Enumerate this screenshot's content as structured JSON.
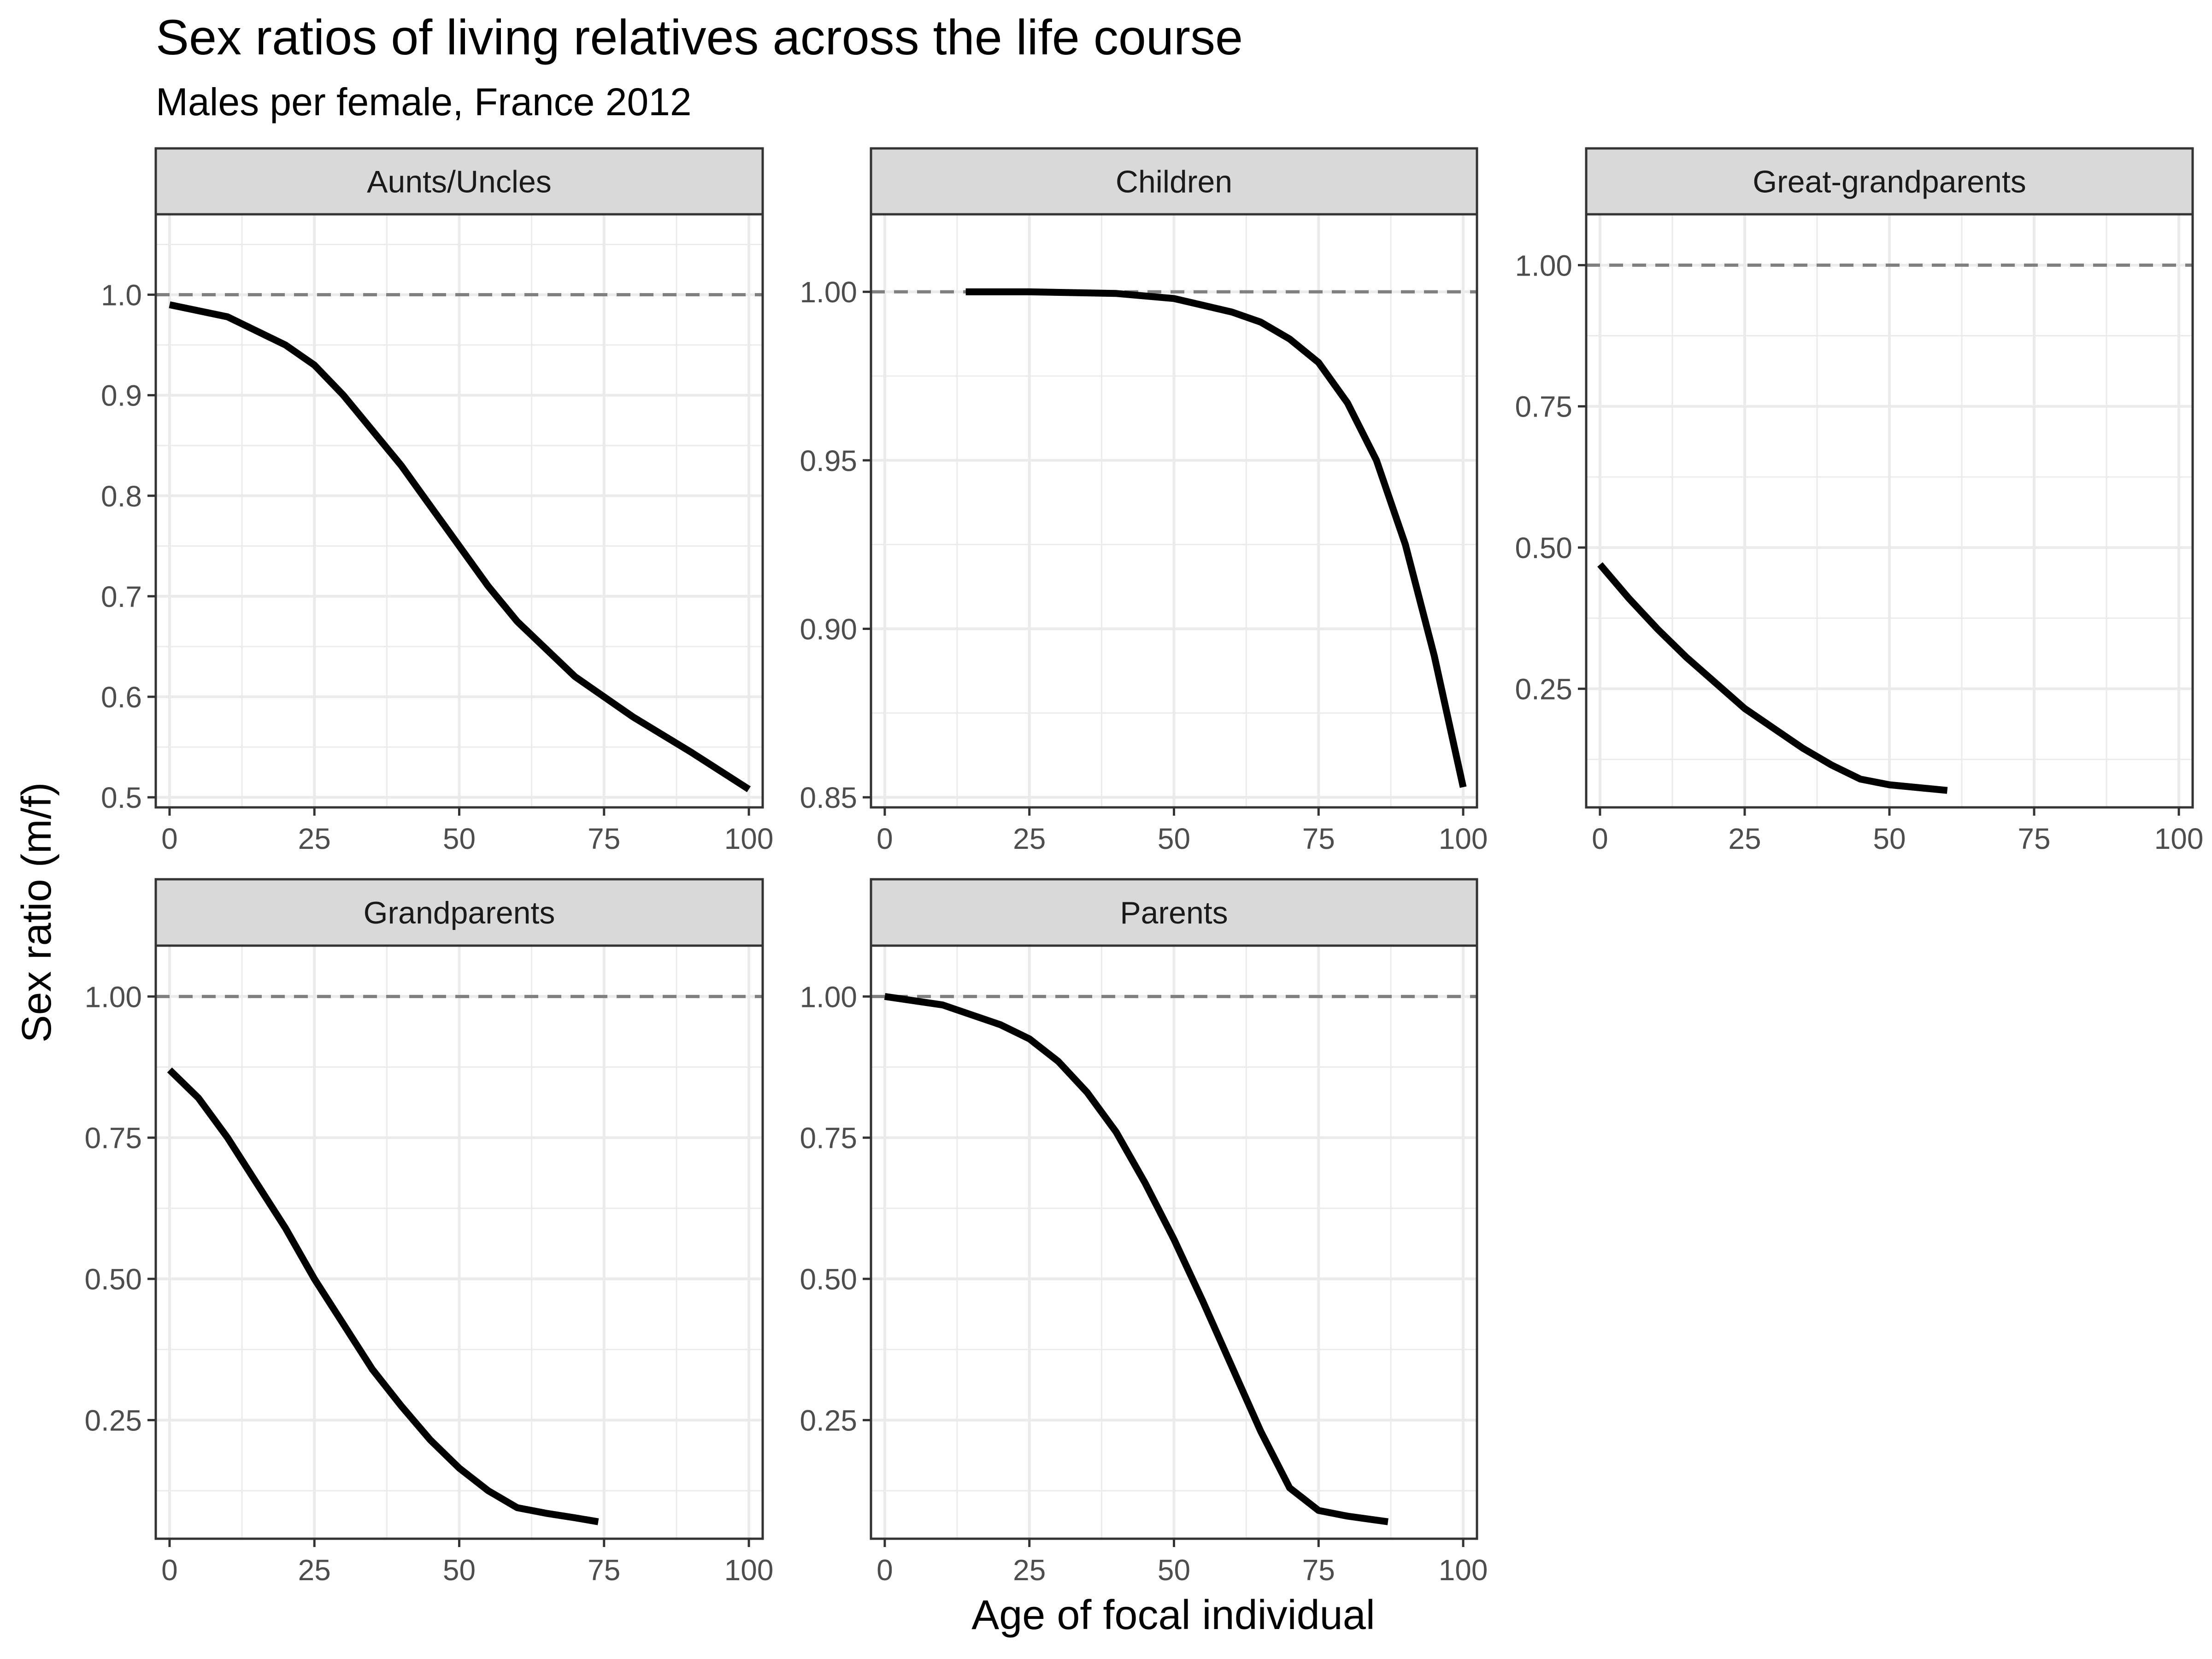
{
  "title": "Sex ratios of living relatives across the life course",
  "subtitle": "Males per female, France 2012",
  "xlabel": "Age of focal individual",
  "ylabel": "Sex ratio (m/f)",
  "chart_data": {
    "type": "line",
    "facet_layout": "3 columns x 2 rows, free y scales",
    "xlim": [
      0,
      100
    ],
    "x_ticks": [
      0,
      25,
      50,
      75,
      100
    ],
    "reference_line": {
      "y": 1.0,
      "style": "dashed",
      "color": "#808080"
    },
    "line_color": "#000000",
    "panels": [
      {
        "name": "Aunts/Uncles",
        "ylim": [
          0.49,
          1.08
        ],
        "y_ticks": [
          0.5,
          0.6,
          0.7,
          0.8,
          0.9,
          1.0
        ],
        "y_tick_labels": [
          "0.5",
          "0.6",
          "0.7",
          "0.8",
          "0.9",
          "1.0"
        ],
        "x": [
          0,
          10,
          20,
          25,
          30,
          40,
          45,
          50,
          55,
          60,
          70,
          75,
          80,
          90,
          100
        ],
        "y": [
          0.99,
          0.978,
          0.95,
          0.93,
          0.9,
          0.83,
          0.79,
          0.75,
          0.71,
          0.675,
          0.62,
          0.6,
          0.58,
          0.545,
          0.508
        ]
      },
      {
        "name": "Children",
        "ylim": [
          0.847,
          1.023
        ],
        "y_ticks": [
          0.85,
          0.9,
          0.95,
          1.0
        ],
        "y_tick_labels": [
          "0.85",
          "0.90",
          "0.95",
          "1.00"
        ],
        "x": [
          14,
          25,
          40,
          50,
          55,
          60,
          65,
          70,
          75,
          80,
          85,
          90,
          95,
          100
        ],
        "y": [
          1.0,
          1.0,
          0.9995,
          0.998,
          0.996,
          0.994,
          0.991,
          0.986,
          0.979,
          0.967,
          0.95,
          0.925,
          0.892,
          0.853
        ]
      },
      {
        "name": "Great-grandparents",
        "ylim": [
          0.04,
          1.09
        ],
        "y_ticks": [
          0.25,
          0.5,
          0.75,
          1.0
        ],
        "y_tick_labels": [
          "0.25",
          "0.50",
          "0.75",
          "1.00"
        ],
        "x": [
          0,
          5,
          10,
          15,
          20,
          25,
          30,
          35,
          40,
          45,
          50,
          55,
          60
        ],
        "y": [
          0.47,
          0.41,
          0.355,
          0.305,
          0.26,
          0.215,
          0.18,
          0.145,
          0.115,
          0.09,
          0.08,
          0.075,
          0.07
        ]
      },
      {
        "name": "Grandparents",
        "ylim": [
          0.04,
          1.09
        ],
        "y_ticks": [
          0.25,
          0.5,
          0.75,
          1.0
        ],
        "y_tick_labels": [
          "0.25",
          "0.50",
          "0.75",
          "1.00"
        ],
        "x": [
          0,
          5,
          10,
          15,
          20,
          25,
          30,
          35,
          40,
          45,
          50,
          55,
          60,
          65,
          70,
          74
        ],
        "y": [
          0.87,
          0.82,
          0.75,
          0.67,
          0.59,
          0.5,
          0.42,
          0.34,
          0.275,
          0.215,
          0.165,
          0.125,
          0.095,
          0.085,
          0.077,
          0.07
        ]
      },
      {
        "name": "Parents",
        "ylim": [
          0.04,
          1.09
        ],
        "y_ticks": [
          0.25,
          0.5,
          0.75,
          1.0
        ],
        "y_tick_labels": [
          "0.25",
          "0.50",
          "0.75",
          "1.00"
        ],
        "x": [
          0,
          10,
          20,
          25,
          30,
          35,
          40,
          45,
          50,
          55,
          60,
          65,
          70,
          75,
          80,
          87
        ],
        "y": [
          1.0,
          0.985,
          0.95,
          0.925,
          0.885,
          0.83,
          0.76,
          0.67,
          0.57,
          0.46,
          0.345,
          0.23,
          0.13,
          0.09,
          0.08,
          0.07
        ]
      }
    ]
  }
}
